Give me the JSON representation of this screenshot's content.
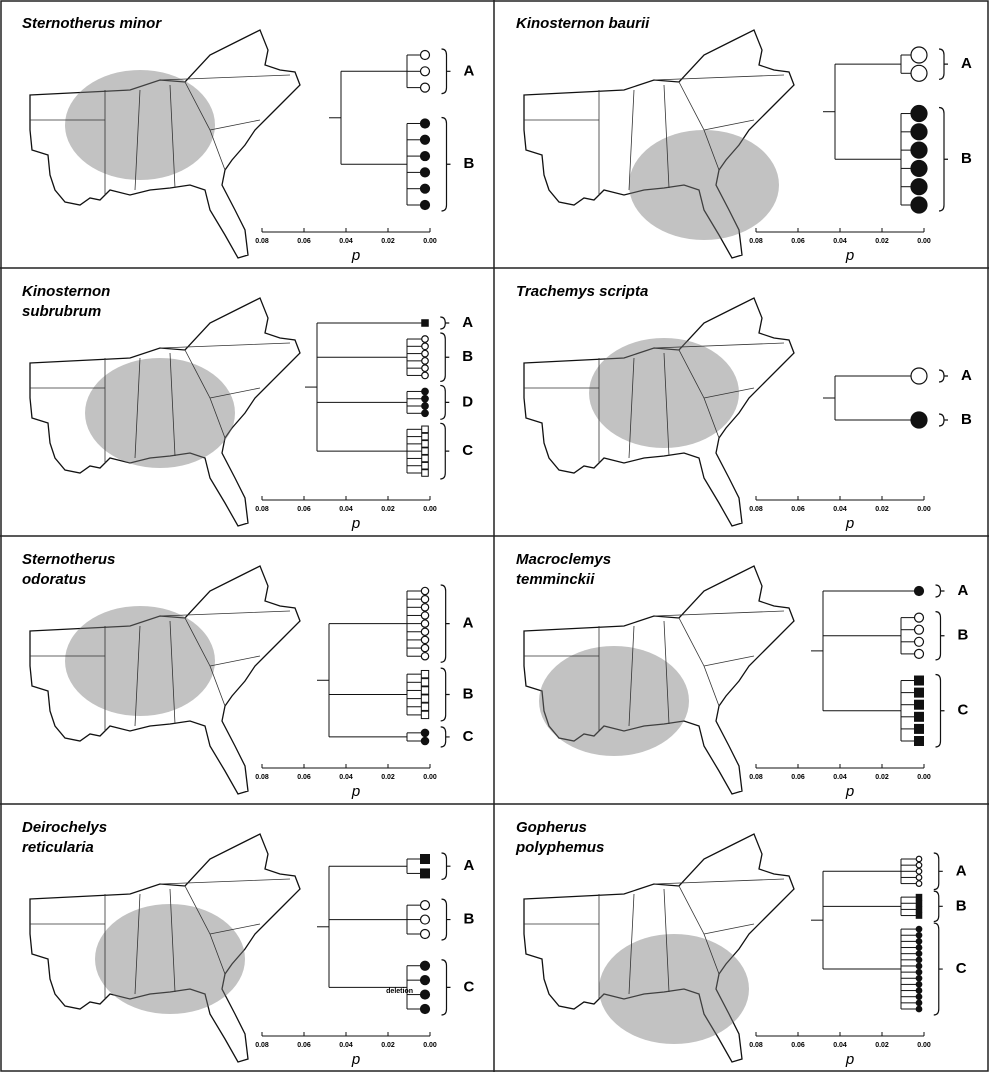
{
  "panels": [
    {
      "title": [
        "Sternotherus minor"
      ],
      "clades": [
        "A",
        "B"
      ]
    },
    {
      "title": [
        "Kinosternon baurii"
      ],
      "clades": [
        "A",
        "B"
      ]
    },
    {
      "title": [
        "Kinosternon",
        "subrubrum"
      ],
      "clades": [
        "A",
        "B",
        "D",
        "C"
      ]
    },
    {
      "title": [
        "Trachemys scripta"
      ],
      "clades": [
        "A",
        "B"
      ]
    },
    {
      "title": [
        "Sternotherus",
        "odoratus"
      ],
      "clades": [
        "A",
        "B",
        "C"
      ]
    },
    {
      "title": [
        "Macroclemys",
        "temminckii"
      ],
      "clades": [
        "A",
        "B",
        "C"
      ]
    },
    {
      "title": [
        "Deirochelys",
        "reticularia"
      ],
      "clades": [
        "A",
        "B",
        "C"
      ],
      "note": "deletion"
    },
    {
      "title": [
        "Gopherus",
        "polyphemus"
      ],
      "clades": [
        "A",
        "B",
        "C"
      ]
    }
  ],
  "axis": {
    "ticks": [
      "0.08",
      "0.06",
      "0.04",
      "0.02",
      "0.00"
    ],
    "label": "p"
  }
}
